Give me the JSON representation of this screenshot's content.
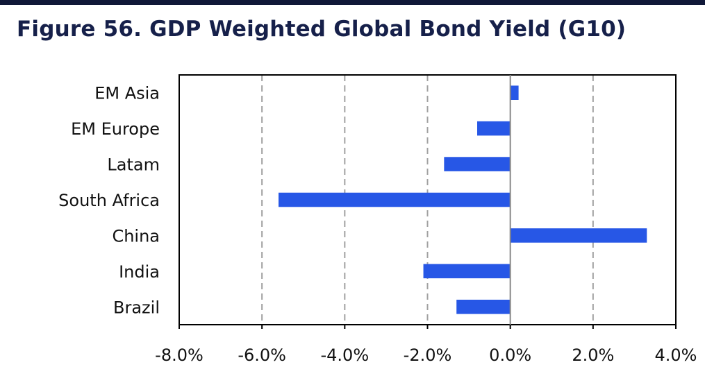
{
  "title": "Figure 56. GDP Weighted Global Bond Yield (G10)",
  "chart_data": {
    "type": "bar",
    "orientation": "horizontal",
    "title": "",
    "xlabel": "",
    "ylabel": "",
    "categories": [
      "EM Asia",
      "EM Europe",
      "Latam",
      "South Africa",
      "China",
      "India",
      "Brazil"
    ],
    "values": [
      0.2,
      -0.8,
      -1.6,
      -5.6,
      3.3,
      -2.1,
      -1.3
    ],
    "value_unit": "%",
    "xlim": [
      -8,
      4
    ],
    "x_ticks": [
      -8,
      -6,
      -4,
      -2,
      0,
      2,
      4
    ],
    "x_tick_labels": [
      "-8.0%",
      "-6.0%",
      "-4.0%",
      "-2.0%",
      "0.0%",
      "2.0%",
      "4.0%"
    ],
    "grid": "vertical dashed",
    "legend": "none",
    "bar_color": "#2757e6"
  }
}
